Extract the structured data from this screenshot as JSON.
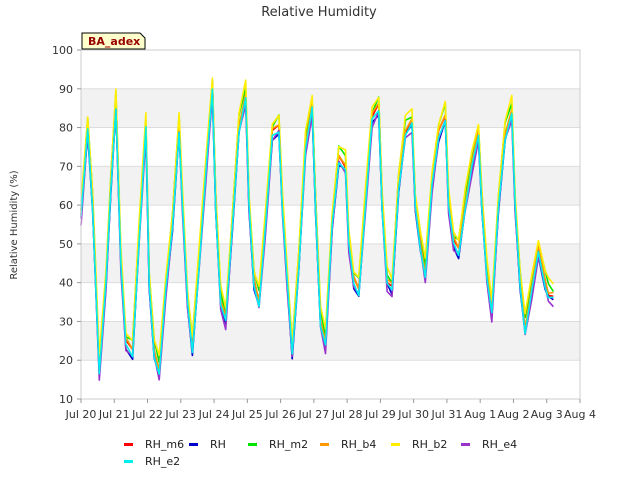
{
  "chart_data": {
    "type": "line",
    "title": "Relative Humidity",
    "ylabel": "Relative Humidity (%)",
    "xlabel": "",
    "site_label": "BA_adex",
    "ylim": [
      10,
      100
    ],
    "yticks": [
      10,
      20,
      30,
      40,
      50,
      60,
      70,
      80,
      90,
      100
    ],
    "xlim": [
      0,
      15
    ],
    "xticks": [
      {
        "x": 0,
        "label": "Jul 20"
      },
      {
        "x": 1,
        "label": "Jul 21"
      },
      {
        "x": 2,
        "label": "Jul 22"
      },
      {
        "x": 3,
        "label": "Jul 23"
      },
      {
        "x": 4,
        "label": "Jul 24"
      },
      {
        "x": 5,
        "label": "Jul 25"
      },
      {
        "x": 6,
        "label": "Jul 26"
      },
      {
        "x": 7,
        "label": "Jul 27"
      },
      {
        "x": 8,
        "label": "Jul 28"
      },
      {
        "x": 9,
        "label": "Jul 29"
      },
      {
        "x": 10,
        "label": "Jul 30"
      },
      {
        "x": 11,
        "label": "Jul 31"
      },
      {
        "x": 12,
        "label": "Aug 1"
      },
      {
        "x": 13,
        "label": "Aug 2"
      },
      {
        "x": 14,
        "label": "Aug 3"
      },
      {
        "x": 15,
        "label": "Aug 4"
      }
    ],
    "grid": "horizontal alternating bands",
    "legend_position": "bottom",
    "base_series": {
      "x": [
        0.0,
        0.2,
        0.35,
        0.55,
        0.75,
        0.9,
        1.05,
        1.2,
        1.35,
        1.55,
        1.75,
        1.95,
        2.05,
        2.2,
        2.35,
        2.55,
        2.75,
        2.95,
        3.05,
        3.2,
        3.35,
        3.55,
        3.75,
        3.95,
        4.05,
        4.2,
        4.35,
        4.55,
        4.75,
        4.95,
        5.05,
        5.2,
        5.35,
        5.55,
        5.75,
        5.95,
        6.05,
        6.2,
        6.35,
        6.55,
        6.75,
        6.95,
        7.05,
        7.2,
        7.35,
        7.55,
        7.75,
        7.95,
        8.05,
        8.2,
        8.35,
        8.55,
        8.75,
        8.95,
        9.05,
        9.2,
        9.35,
        9.55,
        9.75,
        9.95,
        10.05,
        10.2,
        10.35,
        10.55,
        10.75,
        10.95,
        11.05,
        11.2,
        11.35,
        11.55,
        11.75,
        11.95,
        12.05,
        12.2,
        12.35,
        12.55,
        12.75,
        12.95,
        13.05,
        13.2,
        13.35,
        13.55,
        13.75,
        13.95,
        14.05,
        14.2
      ],
      "y": [
        57,
        80,
        60,
        17,
        40,
        65,
        86,
        45,
        24,
        22,
        52,
        80,
        40,
        22,
        17,
        38,
        55,
        80,
        60,
        35,
        23,
        45,
        68,
        90,
        60,
        35,
        30,
        55,
        80,
        88,
        60,
        40,
        35,
        55,
        78,
        80,
        60,
        40,
        22,
        45,
        75,
        85,
        60,
        30,
        24,
        55,
        72,
        70,
        50,
        40,
        38,
        60,
        82,
        85,
        60,
        40,
        38,
        65,
        79,
        81,
        60,
        50,
        42,
        65,
        78,
        83,
        60,
        50,
        48,
        60,
        70,
        78,
        60,
        42,
        32,
        60,
        78,
        84,
        60,
        40,
        28,
        38,
        48,
        40,
        37,
        36
      ]
    },
    "series": [
      {
        "name": "RH_m6",
        "color": "#ff0000",
        "offset": 0.5
      },
      {
        "name": "RH",
        "color": "#0000cc",
        "offset": -1.0
      },
      {
        "name": "RH_m2",
        "color": "#00e600",
        "offset": 2.5
      },
      {
        "name": "RH_b4",
        "color": "#ff9900",
        "offset": 1.0
      },
      {
        "name": "RH_b2",
        "color": "#ffee00",
        "offset": 3.5
      },
      {
        "name": "RH_e4",
        "color": "#9933cc",
        "offset": -1.5
      },
      {
        "name": "RH_e2",
        "color": "#00eeee",
        "offset": -0.5
      }
    ]
  }
}
